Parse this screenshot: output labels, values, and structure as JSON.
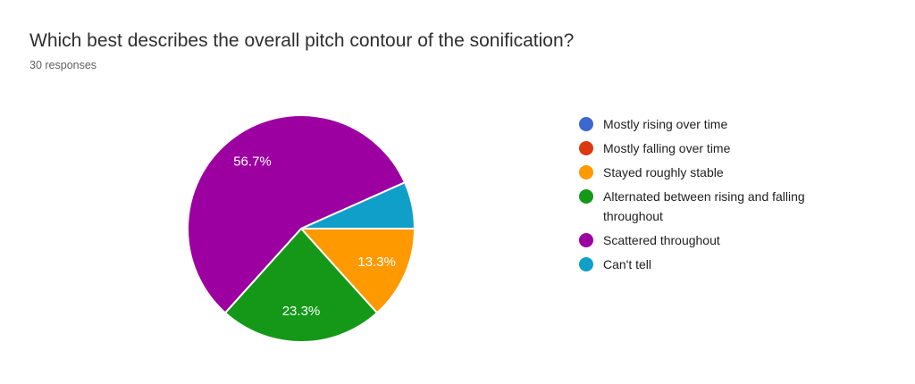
{
  "chart_data": {
    "type": "pie",
    "title": "Which best describes the overall pitch contour of the sonification?",
    "subtitle": "30 responses",
    "total_responses": 30,
    "start_angle_deg": 0,
    "legend_position": "right",
    "percent_label_color": "#ffffff",
    "slice_separator_color": "#ffffff",
    "slices": [
      {
        "label": "Mostly rising over time",
        "count": 0,
        "percent": 0,
        "percent_label": null,
        "color": "#3d68d0"
      },
      {
        "label": "Mostly falling over time",
        "count": 0,
        "percent": 0,
        "percent_label": null,
        "color": "#dc3912"
      },
      {
        "label": "Stayed roughly stable",
        "count": 4,
        "percent": 13.3,
        "percent_label": "13.3%",
        "color": "#ff9900"
      },
      {
        "label": "Alternated between rising and falling throughout",
        "count": 7,
        "percent": 23.3,
        "percent_label": "23.3%",
        "color": "#159818"
      },
      {
        "label": "Scattered throughout",
        "count": 17,
        "percent": 56.7,
        "percent_label": "56.7%",
        "color": "#9c00a0"
      },
      {
        "label": "Can't tell",
        "count": 2,
        "percent": 6.7,
        "percent_label": null,
        "color": "#0f9fc9"
      }
    ]
  }
}
